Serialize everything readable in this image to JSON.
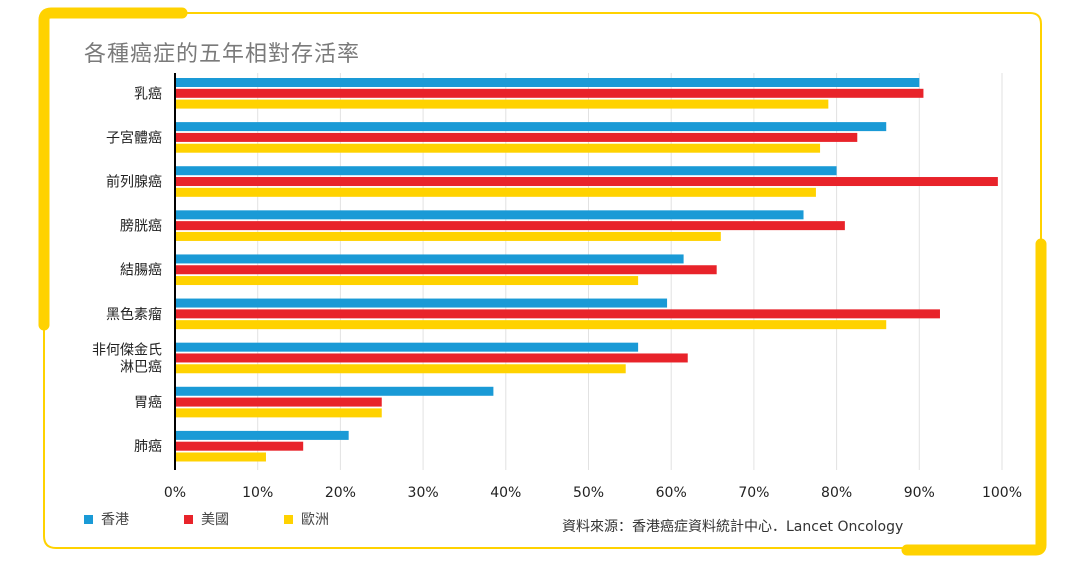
{
  "chart_data": {
    "type": "bar",
    "orientation": "horizontal",
    "title": "各種癌症的五年相對存活率",
    "categories": [
      "乳癌",
      "子宮體癌",
      "前列腺癌",
      "膀胱癌",
      "結腸癌",
      "黑色素瘤",
      "非何傑金氏\n淋巴癌",
      "胃癌",
      "肺癌"
    ],
    "series": [
      {
        "name": "香港",
        "color": "#1a9ad6",
        "values": [
          90,
          86,
          80,
          76,
          61.5,
          59.5,
          56,
          38.5,
          21
        ]
      },
      {
        "name": "美國",
        "color": "#e8232a",
        "values": [
          90.5,
          82.5,
          99.5,
          81,
          65.5,
          92.5,
          62,
          25,
          15.5
        ]
      },
      {
        "name": "歐洲",
        "color": "#ffd200",
        "values": [
          79,
          78,
          77.5,
          66,
          56,
          86,
          54.5,
          25,
          11
        ]
      }
    ],
    "x_ticks": [
      "0%",
      "10%",
      "20%",
      "30%",
      "40%",
      "50%",
      "60%",
      "70%",
      "80%",
      "90%",
      "100%"
    ],
    "xlim": [
      0,
      100
    ],
    "grid": "vertical",
    "legend_position": "bottom-left"
  },
  "source_text": "資料來源：香港癌症資料統計中心．Lancet Oncology",
  "colors": {
    "frame": "#ffd200",
    "grid": "#e2e2e2",
    "axis": "#000000"
  }
}
